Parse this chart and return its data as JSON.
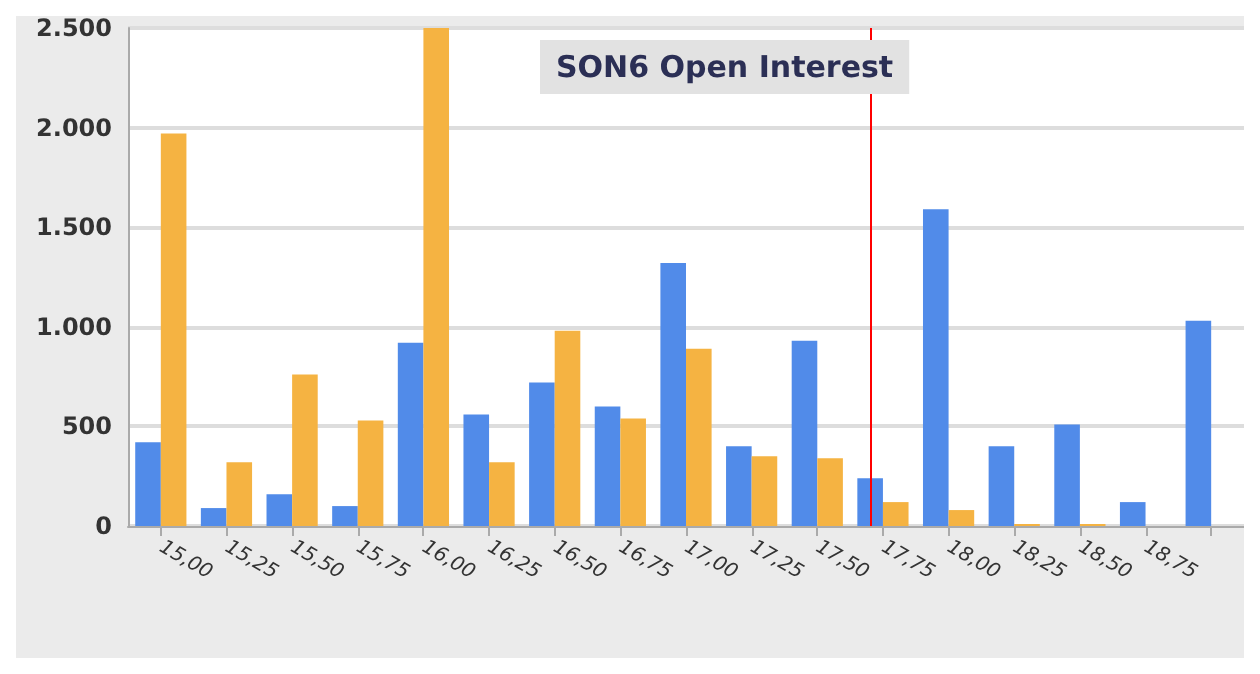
{
  "chart_data": {
    "type": "bar",
    "title": "SON6 Open Interest",
    "categories": [
      "15,00",
      "15,25",
      "15,50",
      "15,75",
      "16,00",
      "16,25",
      "16,50",
      "16,75",
      "17,00",
      "17,25",
      "17,50",
      "17,75",
      "18,00",
      "18,25",
      "18,50",
      "18,75",
      null
    ],
    "series": [
      {
        "color": "#518be9",
        "values": [
          420,
          90,
          160,
          100,
          920,
          560,
          720,
          600,
          1320,
          400,
          930,
          240,
          1590,
          400,
          510,
          120,
          1030
        ]
      },
      {
        "color": "#f5b342",
        "values": [
          1970,
          320,
          760,
          530,
          2500,
          320,
          980,
          540,
          890,
          350,
          340,
          120,
          80,
          10,
          10,
          0,
          0
        ]
      }
    ],
    "ylim": [
      0,
      2500
    ],
    "yticks": [
      0,
      500,
      {
        "value": 1000,
        "label": "1.000"
      },
      {
        "value": 1500,
        "label": "1.500"
      },
      {
        "value": 2000,
        "label": "2.000"
      },
      {
        "value": 2500,
        "label": "2.500"
      }
    ],
    "grid": "y",
    "ref_lines": [
      {
        "axis": "x",
        "value": "17,75",
        "color": "#ff0000"
      }
    ]
  }
}
